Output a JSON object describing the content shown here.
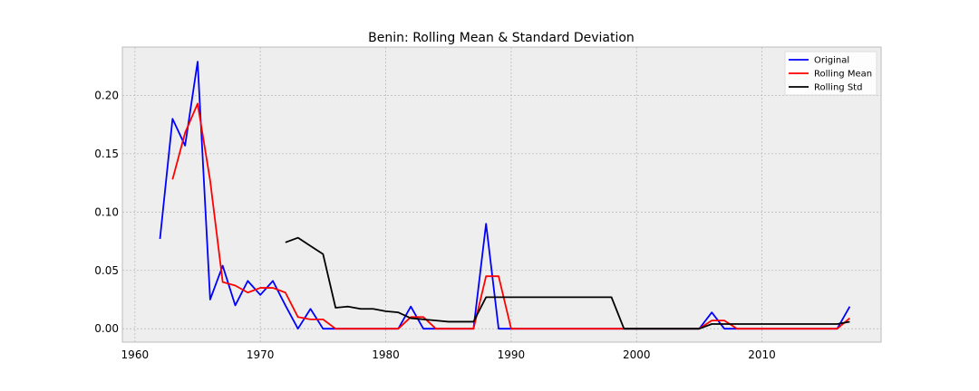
{
  "chart_data": {
    "type": "line",
    "title": "Benin: Rolling Mean & Standard Deviation",
    "xlabel": "",
    "ylabel": "",
    "xlim": [
      1959,
      2019.5
    ],
    "ylim": [
      -0.0115,
      0.2415
    ],
    "xticks": [
      1960,
      1970,
      1980,
      1990,
      2000,
      2010
    ],
    "yticks": [
      0.0,
      0.05,
      0.1,
      0.15,
      0.2
    ],
    "ytick_labels": [
      "0.00",
      "0.05",
      "0.10",
      "0.15",
      "0.20"
    ],
    "grid": true,
    "legend_position": "top-right",
    "series": [
      {
        "name": "Original",
        "color": "#0000ff",
        "points": [
          [
            1962,
            0.077
          ],
          [
            1963,
            0.18
          ],
          [
            1964,
            0.157
          ],
          [
            1965,
            0.229
          ],
          [
            1966,
            0.025
          ],
          [
            1967,
            0.054
          ],
          [
            1968,
            0.02
          ],
          [
            1969,
            0.041
          ],
          [
            1970,
            0.029
          ],
          [
            1971,
            0.041
          ],
          [
            1972,
            0.02
          ],
          [
            1973,
            0.0
          ],
          [
            1974,
            0.017
          ],
          [
            1975,
            0.0
          ],
          [
            1976,
            0.0
          ],
          [
            1977,
            0.0
          ],
          [
            1978,
            0.0
          ],
          [
            1979,
            0.0
          ],
          [
            1980,
            0.0
          ],
          [
            1981,
            0.0
          ],
          [
            1982,
            0.019
          ],
          [
            1983,
            0.0
          ],
          [
            1984,
            0.0
          ],
          [
            1985,
            0.0
          ],
          [
            1986,
            0.0
          ],
          [
            1987,
            0.0
          ],
          [
            1988,
            0.09
          ],
          [
            1989,
            0.0
          ],
          [
            1990,
            0.0
          ],
          [
            1991,
            0.0
          ],
          [
            1992,
            0.0
          ],
          [
            1993,
            0.0
          ],
          [
            1994,
            0.0
          ],
          [
            1995,
            0.0
          ],
          [
            1996,
            0.0
          ],
          [
            1997,
            0.0
          ],
          [
            1998,
            0.0
          ],
          [
            1999,
            0.0
          ],
          [
            2000,
            0.0
          ],
          [
            2001,
            0.0
          ],
          [
            2002,
            0.0
          ],
          [
            2003,
            0.0
          ],
          [
            2004,
            0.0
          ],
          [
            2005,
            0.0
          ],
          [
            2006,
            0.014
          ],
          [
            2007,
            0.0
          ],
          [
            2008,
            0.0
          ],
          [
            2009,
            0.0
          ],
          [
            2010,
            0.0
          ],
          [
            2011,
            0.0
          ],
          [
            2012,
            0.0
          ],
          [
            2013,
            0.0
          ],
          [
            2014,
            0.0
          ],
          [
            2015,
            0.0
          ],
          [
            2016,
            0.0
          ],
          [
            2017,
            0.019
          ]
        ]
      },
      {
        "name": "Rolling Mean",
        "color": "#ff0000",
        "points": [
          [
            1963,
            0.128
          ],
          [
            1964,
            0.168
          ],
          [
            1965,
            0.193
          ],
          [
            1966,
            0.127
          ],
          [
            1967,
            0.04
          ],
          [
            1968,
            0.037
          ],
          [
            1969,
            0.031
          ],
          [
            1970,
            0.035
          ],
          [
            1971,
            0.035
          ],
          [
            1972,
            0.031
          ],
          [
            1973,
            0.01
          ],
          [
            1974,
            0.008
          ],
          [
            1975,
            0.008
          ],
          [
            1976,
            0.0
          ],
          [
            1977,
            0.0
          ],
          [
            1978,
            0.0
          ],
          [
            1979,
            0.0
          ],
          [
            1980,
            0.0
          ],
          [
            1981,
            0.0
          ],
          [
            1982,
            0.01
          ],
          [
            1983,
            0.01
          ],
          [
            1984,
            0.0
          ],
          [
            1985,
            0.0
          ],
          [
            1986,
            0.0
          ],
          [
            1987,
            0.0
          ],
          [
            1988,
            0.045
          ],
          [
            1989,
            0.045
          ],
          [
            1990,
            0.0
          ],
          [
            1991,
            0.0
          ],
          [
            1992,
            0.0
          ],
          [
            1993,
            0.0
          ],
          [
            1994,
            0.0
          ],
          [
            1995,
            0.0
          ],
          [
            1996,
            0.0
          ],
          [
            1997,
            0.0
          ],
          [
            1998,
            0.0
          ],
          [
            1999,
            0.0
          ],
          [
            2000,
            0.0
          ],
          [
            2001,
            0.0
          ],
          [
            2002,
            0.0
          ],
          [
            2003,
            0.0
          ],
          [
            2004,
            0.0
          ],
          [
            2005,
            0.0
          ],
          [
            2006,
            0.007
          ],
          [
            2007,
            0.007
          ],
          [
            2008,
            0.0
          ],
          [
            2009,
            0.0
          ],
          [
            2010,
            0.0
          ],
          [
            2011,
            0.0
          ],
          [
            2012,
            0.0
          ],
          [
            2013,
            0.0
          ],
          [
            2014,
            0.0
          ],
          [
            2015,
            0.0
          ],
          [
            2016,
            0.0
          ],
          [
            2017,
            0.009
          ]
        ]
      },
      {
        "name": "Rolling Std",
        "color": "#000000",
        "points": [
          [
            1972,
            0.074
          ],
          [
            1973,
            0.078
          ],
          [
            1974,
            0.071
          ],
          [
            1975,
            0.064
          ],
          [
            1976,
            0.018
          ],
          [
            1977,
            0.019
          ],
          [
            1978,
            0.017
          ],
          [
            1979,
            0.017
          ],
          [
            1980,
            0.015
          ],
          [
            1981,
            0.014
          ],
          [
            1982,
            0.009
          ],
          [
            1983,
            0.008
          ],
          [
            1984,
            0.007
          ],
          [
            1985,
            0.006
          ],
          [
            1986,
            0.006
          ],
          [
            1987,
            0.006
          ],
          [
            1988,
            0.027
          ],
          [
            1989,
            0.027
          ],
          [
            1990,
            0.027
          ],
          [
            1991,
            0.027
          ],
          [
            1992,
            0.027
          ],
          [
            1993,
            0.027
          ],
          [
            1994,
            0.027
          ],
          [
            1995,
            0.027
          ],
          [
            1996,
            0.027
          ],
          [
            1997,
            0.027
          ],
          [
            1998,
            0.027
          ],
          [
            1999,
            0.0
          ],
          [
            2000,
            0.0
          ],
          [
            2001,
            0.0
          ],
          [
            2002,
            0.0
          ],
          [
            2003,
            0.0
          ],
          [
            2004,
            0.0
          ],
          [
            2005,
            0.0
          ],
          [
            2006,
            0.004
          ],
          [
            2007,
            0.004
          ],
          [
            2008,
            0.004
          ],
          [
            2009,
            0.004
          ],
          [
            2010,
            0.004
          ],
          [
            2011,
            0.004
          ],
          [
            2012,
            0.004
          ],
          [
            2013,
            0.004
          ],
          [
            2014,
            0.004
          ],
          [
            2015,
            0.004
          ],
          [
            2016,
            0.004
          ],
          [
            2017,
            0.006
          ]
        ]
      }
    ],
    "colors": {
      "plot_background": "#eeeeee",
      "grid": "#bbbbbb",
      "frame": "#bcbcbc",
      "legend_background": "#ffffff"
    }
  }
}
